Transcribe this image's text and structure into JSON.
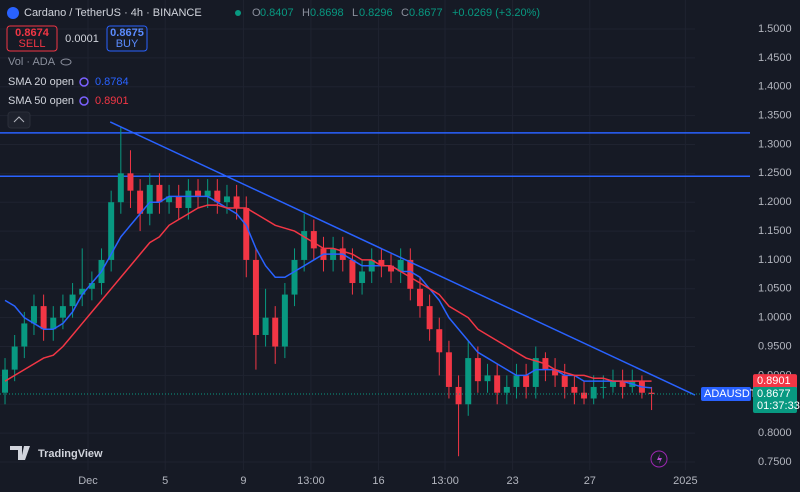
{
  "header": {
    "title": "Cardano / TetherUS · 4h · BINANCE",
    "o_label": "O",
    "o": "0.8407",
    "h_label": "H",
    "h": "0.8698",
    "l_label": "L",
    "l": "0.8296",
    "c_label": "C",
    "c": "0.8677",
    "change": "+0.0269 (+3.20%)",
    "sell_price": "0.8674",
    "sell": "SELL",
    "spread": "0.0001",
    "buy_price": "0.8675",
    "buy": "BUY",
    "volume": "Vol · ADA",
    "logo": "TradingView"
  },
  "chart_data": {
    "type": "candlestick",
    "xlim": [
      -0.52,
      71.5
    ],
    "ylim": [
      0.75,
      1.5
    ],
    "xticks": [
      {
        "value": 8.6,
        "label": "Dec"
      },
      {
        "value": 16.6,
        "label": "5"
      },
      {
        "value": 24.7,
        "label": "9"
      },
      {
        "value": 31.7,
        "label": "13:00"
      },
      {
        "value": 38.7,
        "label": "16"
      },
      {
        "value": 45.6,
        "label": "13:00"
      },
      {
        "value": 52.6,
        "label": "23"
      },
      {
        "value": 60.6,
        "label": "27"
      },
      {
        "value": 70.5,
        "label": "2025"
      }
    ],
    "yticks": [
      {
        "value": 0.75,
        "label": "0.7500"
      },
      {
        "value": 0.8,
        "label": "0.8000"
      },
      {
        "value": 0.85,
        "label": "0.8500"
      },
      {
        "value": 0.9,
        "label": "0.9000"
      },
      {
        "value": 0.95,
        "label": "0.9500"
      },
      {
        "value": 1.0,
        "label": "1.0000"
      },
      {
        "value": 1.05,
        "label": "1.0500"
      },
      {
        "value": 1.1,
        "label": "1.1000"
      },
      {
        "value": 1.15,
        "label": "1.1500"
      },
      {
        "value": 1.2,
        "label": "1.2000"
      },
      {
        "value": 1.25,
        "label": "1.2500"
      },
      {
        "value": 1.3,
        "label": "1.3000"
      },
      {
        "value": 1.35,
        "label": "1.3500"
      },
      {
        "value": 1.4,
        "label": "1.4000"
      },
      {
        "value": 1.45,
        "label": "1.4500"
      },
      {
        "value": 1.5,
        "label": "1.5000"
      }
    ],
    "grid": true,
    "up_color": "#089981",
    "down_color": "#f23645",
    "open": [
      0.87,
      0.91,
      0.95,
      0.99,
      1.02,
      0.98,
      1.0,
      1.02,
      1.04,
      1.05,
      1.06,
      1.1,
      1.2,
      1.25,
      1.22,
      1.18,
      1.23,
      1.2,
      1.21,
      1.19,
      1.22,
      1.21,
      1.22,
      1.2,
      1.21,
      1.19,
      1.1,
      0.97,
      1.0,
      0.95,
      1.04,
      1.1,
      1.15,
      1.12,
      1.1,
      1.12,
      1.1,
      1.06,
      1.08,
      1.1,
      1.09,
      1.08,
      1.1,
      1.05,
      1.02,
      0.98,
      0.94,
      0.88,
      0.85,
      0.93,
      0.89,
      0.9,
      0.87,
      0.88,
      0.9,
      0.88,
      0.93,
      0.91,
      0.9,
      0.88,
      0.87,
      0.86,
      0.88,
      0.88,
      0.89,
      0.88,
      0.89,
      0.87
    ],
    "high": [
      0.93,
      0.97,
      1.01,
      1.04,
      1.04,
      1.02,
      1.04,
      1.06,
      1.12,
      1.08,
      1.12,
      1.22,
      1.33,
      1.29,
      1.24,
      1.25,
      1.25,
      1.23,
      1.23,
      1.24,
      1.24,
      1.24,
      1.24,
      1.23,
      1.23,
      1.21,
      1.12,
      1.05,
      1.02,
      1.06,
      1.12,
      1.18,
      1.17,
      1.14,
      1.14,
      1.14,
      1.12,
      1.1,
      1.12,
      1.12,
      1.11,
      1.12,
      1.12,
      1.07,
      1.04,
      1.0,
      0.96,
      0.9,
      0.96,
      0.95,
      0.92,
      0.92,
      0.9,
      0.92,
      0.92,
      0.95,
      0.94,
      0.93,
      0.92,
      0.9,
      0.89,
      0.9,
      0.9,
      0.91,
      0.91,
      0.91,
      0.9,
      0.88
    ],
    "low": [
      0.85,
      0.89,
      0.93,
      0.97,
      0.96,
      0.96,
      0.98,
      1.0,
      1.02,
      1.03,
      1.04,
      1.08,
      1.18,
      1.19,
      1.15,
      1.16,
      1.18,
      1.18,
      1.17,
      1.17,
      1.19,
      1.19,
      1.18,
      1.18,
      1.17,
      1.07,
      0.91,
      0.95,
      0.92,
      0.93,
      1.02,
      1.08,
      1.1,
      1.08,
      1.08,
      1.08,
      1.04,
      1.04,
      1.06,
      1.07,
      1.06,
      1.06,
      1.03,
      1.0,
      0.96,
      0.9,
      0.86,
      0.76,
      0.83,
      0.87,
      0.87,
      0.85,
      0.85,
      0.86,
      0.86,
      0.86,
      0.89,
      0.88,
      0.86,
      0.85,
      0.85,
      0.85,
      0.86,
      0.87,
      0.86,
      0.87,
      0.86,
      0.84
    ],
    "close": [
      0.91,
      0.95,
      0.99,
      1.02,
      0.98,
      1.0,
      1.02,
      1.04,
      1.05,
      1.06,
      1.1,
      1.2,
      1.25,
      1.22,
      1.18,
      1.23,
      1.2,
      1.21,
      1.19,
      1.22,
      1.21,
      1.22,
      1.2,
      1.21,
      1.19,
      1.1,
      0.97,
      1.0,
      0.95,
      1.04,
      1.1,
      1.15,
      1.12,
      1.1,
      1.12,
      1.1,
      1.06,
      1.08,
      1.1,
      1.09,
      1.08,
      1.1,
      1.05,
      1.02,
      0.98,
      0.94,
      0.88,
      0.85,
      0.93,
      0.89,
      0.9,
      0.87,
      0.88,
      0.9,
      0.88,
      0.93,
      0.91,
      0.9,
      0.88,
      0.87,
      0.86,
      0.88,
      0.88,
      0.89,
      0.88,
      0.89,
      0.87,
      0.8677
    ],
    "series": [
      {
        "name": "SMA 20 open",
        "color": "#2962ff",
        "last_label": "0.8784",
        "values": [
          1.03,
          1.02,
          1.0,
          0.99,
          0.98,
          0.98,
          0.99,
          1.01,
          1.04,
          1.06,
          1.08,
          1.11,
          1.14,
          1.16,
          1.18,
          1.2,
          1.2,
          1.21,
          1.21,
          1.21,
          1.21,
          1.21,
          1.2,
          1.19,
          1.18,
          1.16,
          1.12,
          1.09,
          1.07,
          1.07,
          1.08,
          1.09,
          1.1,
          1.11,
          1.11,
          1.11,
          1.1,
          1.09,
          1.09,
          1.09,
          1.09,
          1.08,
          1.08,
          1.07,
          1.05,
          1.03,
          1.0,
          0.98,
          0.96,
          0.94,
          0.93,
          0.92,
          0.91,
          0.9,
          0.9,
          0.91,
          0.91,
          0.91,
          0.9,
          0.9,
          0.89,
          0.89,
          0.89,
          0.89,
          0.89,
          0.885,
          0.88,
          0.8784
        ]
      },
      {
        "name": "SMA 50 open",
        "color": "#f23645",
        "last_label": "0.8901",
        "values": [
          0.89,
          0.9,
          0.91,
          0.92,
          0.93,
          0.935,
          0.95,
          0.97,
          0.99,
          1.01,
          1.03,
          1.05,
          1.07,
          1.09,
          1.11,
          1.13,
          1.14,
          1.16,
          1.17,
          1.18,
          1.19,
          1.195,
          1.195,
          1.19,
          1.19,
          1.19,
          1.18,
          1.17,
          1.16,
          1.155,
          1.15,
          1.14,
          1.13,
          1.12,
          1.12,
          1.115,
          1.11,
          1.1,
          1.1,
          1.09,
          1.09,
          1.08,
          1.07,
          1.06,
          1.05,
          1.04,
          1.02,
          1.01,
          1.0,
          0.98,
          0.97,
          0.96,
          0.95,
          0.94,
          0.93,
          0.925,
          0.92,
          0.91,
          0.905,
          0.9,
          0.9,
          0.895,
          0.895,
          0.89,
          0.89,
          0.89,
          0.89,
          0.8901
        ]
      }
    ],
    "hlines": [
      1.32,
      1.245
    ],
    "line_color": "#2962ff",
    "trendline": {
      "x": [
        10.9,
        71.5
      ],
      "y": [
        1.339,
        0.866
      ]
    },
    "symbol": "ADAUSDT",
    "price_label": "0.8677",
    "countdown": "01:37:33"
  }
}
